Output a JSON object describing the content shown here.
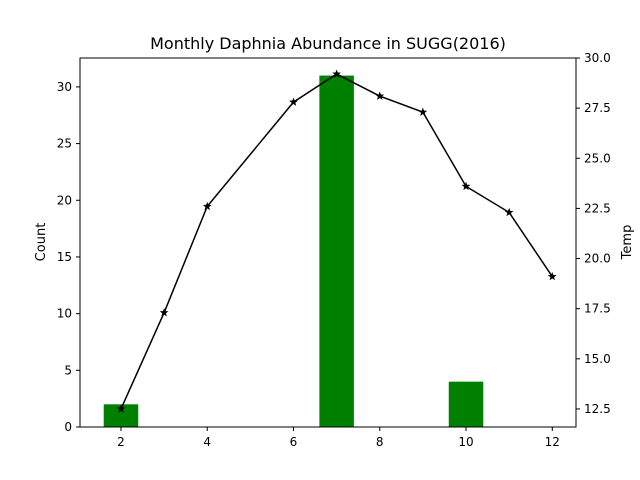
{
  "chart_data": {
    "type": "bar",
    "title": "Monthly Daphnia Abundance in SUGG(2016)",
    "xlabel": "",
    "ylabel": "Count",
    "y2label": "Temp",
    "xlim": [
      1.05,
      12.55
    ],
    "ylim": [
      0,
      32.55
    ],
    "y2lim": [
      11.6,
      30.0
    ],
    "xticks": [
      2,
      4,
      6,
      8,
      10,
      12
    ],
    "yticks": [
      0,
      5,
      10,
      15,
      20,
      25,
      30
    ],
    "y2ticks": [
      12.5,
      15.0,
      17.5,
      20.0,
      22.5,
      25.0,
      27.5,
      30.0
    ],
    "grid": false,
    "legend": false,
    "bars": {
      "x": [
        2,
        7,
        10
      ],
      "values": [
        2,
        31,
        4
      ],
      "width": 0.8,
      "color": "#008000",
      "axis": "left"
    },
    "line": {
      "x": [
        2,
        3,
        4,
        6,
        7,
        8,
        9,
        10,
        11,
        12
      ],
      "values": [
        12.5,
        17.3,
        22.6,
        27.8,
        29.2,
        28.1,
        27.3,
        23.6,
        22.3,
        19.1
      ],
      "color": "#000000",
      "marker": "star",
      "axis": "right"
    }
  }
}
